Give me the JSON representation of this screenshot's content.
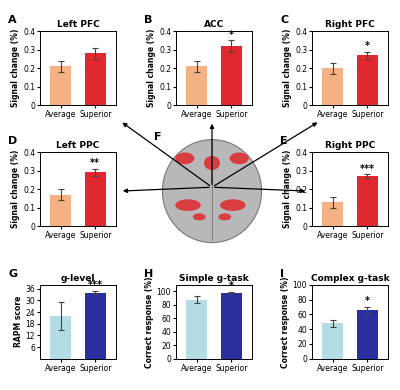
{
  "chart_data": [
    {
      "panel": "A",
      "type": "bar",
      "title": "Left PFC",
      "y_label": "Signal change (%)",
      "categories": [
        "Average",
        "Superior"
      ],
      "values": [
        0.21,
        0.28
      ],
      "errors": [
        0.03,
        0.03
      ],
      "colors": [
        "#f4b183",
        "#e0282e"
      ],
      "ylim": [
        0,
        0.4
      ],
      "yticks": [
        0,
        0.1,
        0.2,
        0.3,
        0.4
      ]
    },
    {
      "panel": "B",
      "type": "bar",
      "title": "ACC",
      "y_label": "Signal change (%)",
      "categories": [
        "Average",
        "Superior"
      ],
      "values": [
        0.21,
        0.32
      ],
      "errors": [
        0.03,
        0.03
      ],
      "colors": [
        "#f4b183",
        "#e0282e"
      ],
      "ylim": [
        0,
        0.4
      ],
      "yticks": [
        0,
        0.1,
        0.2,
        0.3,
        0.4
      ],
      "annotation": "*"
    },
    {
      "panel": "C",
      "type": "bar",
      "title": "Right PFC",
      "y_label": "Signal change (%)",
      "categories": [
        "Average",
        "Superior"
      ],
      "values": [
        0.2,
        0.27
      ],
      "errors": [
        0.03,
        0.02
      ],
      "colors": [
        "#f4b183",
        "#e0282e"
      ],
      "ylim": [
        0,
        0.4
      ],
      "yticks": [
        0,
        0.1,
        0.2,
        0.3,
        0.4
      ],
      "annotation": "*"
    },
    {
      "panel": "D",
      "type": "bar",
      "title": "Left PPC",
      "y_label": "Signal change (%)",
      "categories": [
        "Average",
        "Superior"
      ],
      "values": [
        0.17,
        0.29
      ],
      "errors": [
        0.03,
        0.02
      ],
      "colors": [
        "#f4b183",
        "#e0282e"
      ],
      "ylim": [
        0,
        0.4
      ],
      "yticks": [
        0,
        0.1,
        0.2,
        0.3,
        0.4
      ],
      "annotation": "**"
    },
    {
      "panel": "E",
      "type": "bar",
      "title": "Right PPC",
      "y_label": "Signal change (%)",
      "categories": [
        "Average",
        "Superior"
      ],
      "values": [
        0.13,
        0.27
      ],
      "errors": [
        0.03,
        0.01
      ],
      "colors": [
        "#f4b183",
        "#e0282e"
      ],
      "ylim": [
        0,
        0.4
      ],
      "yticks": [
        0,
        0.1,
        0.2,
        0.3,
        0.4
      ],
      "annotation": "***"
    },
    {
      "panel": "G",
      "type": "bar",
      "title": "g-level",
      "y_label": "RAPM score",
      "categories": [
        "Average",
        "Superior"
      ],
      "values": [
        22,
        34
      ],
      "errors": [
        7,
        1
      ],
      "colors": [
        "#b4dce4",
        "#2b2f9e"
      ],
      "ylim": [
        0,
        38
      ],
      "yticks": [
        6,
        12,
        18,
        24,
        30,
        36
      ],
      "annotation": "***"
    },
    {
      "panel": "H",
      "type": "bar",
      "title": "Simple g-task",
      "y_label": "Correct response (%)",
      "categories": [
        "Average",
        "Superior"
      ],
      "values": [
        88,
        98
      ],
      "errors": [
        5,
        1
      ],
      "colors": [
        "#b4dce4",
        "#2b2f9e"
      ],
      "ylim": [
        0,
        110
      ],
      "yticks": [
        0,
        20,
        40,
        60,
        80,
        100
      ],
      "annotation": "*"
    },
    {
      "panel": "I",
      "type": "bar",
      "title": "Complex g-task",
      "y_label": "Correct response (%)",
      "categories": [
        "Average",
        "Superior"
      ],
      "values": [
        48,
        66
      ],
      "errors": [
        5,
        4
      ],
      "colors": [
        "#b4dce4",
        "#2b2f9e"
      ],
      "ylim": [
        0,
        100
      ],
      "yticks": [
        0,
        20,
        40,
        60,
        80,
        100
      ],
      "annotation": "*"
    }
  ],
  "diagram": {
    "panel": "F"
  }
}
